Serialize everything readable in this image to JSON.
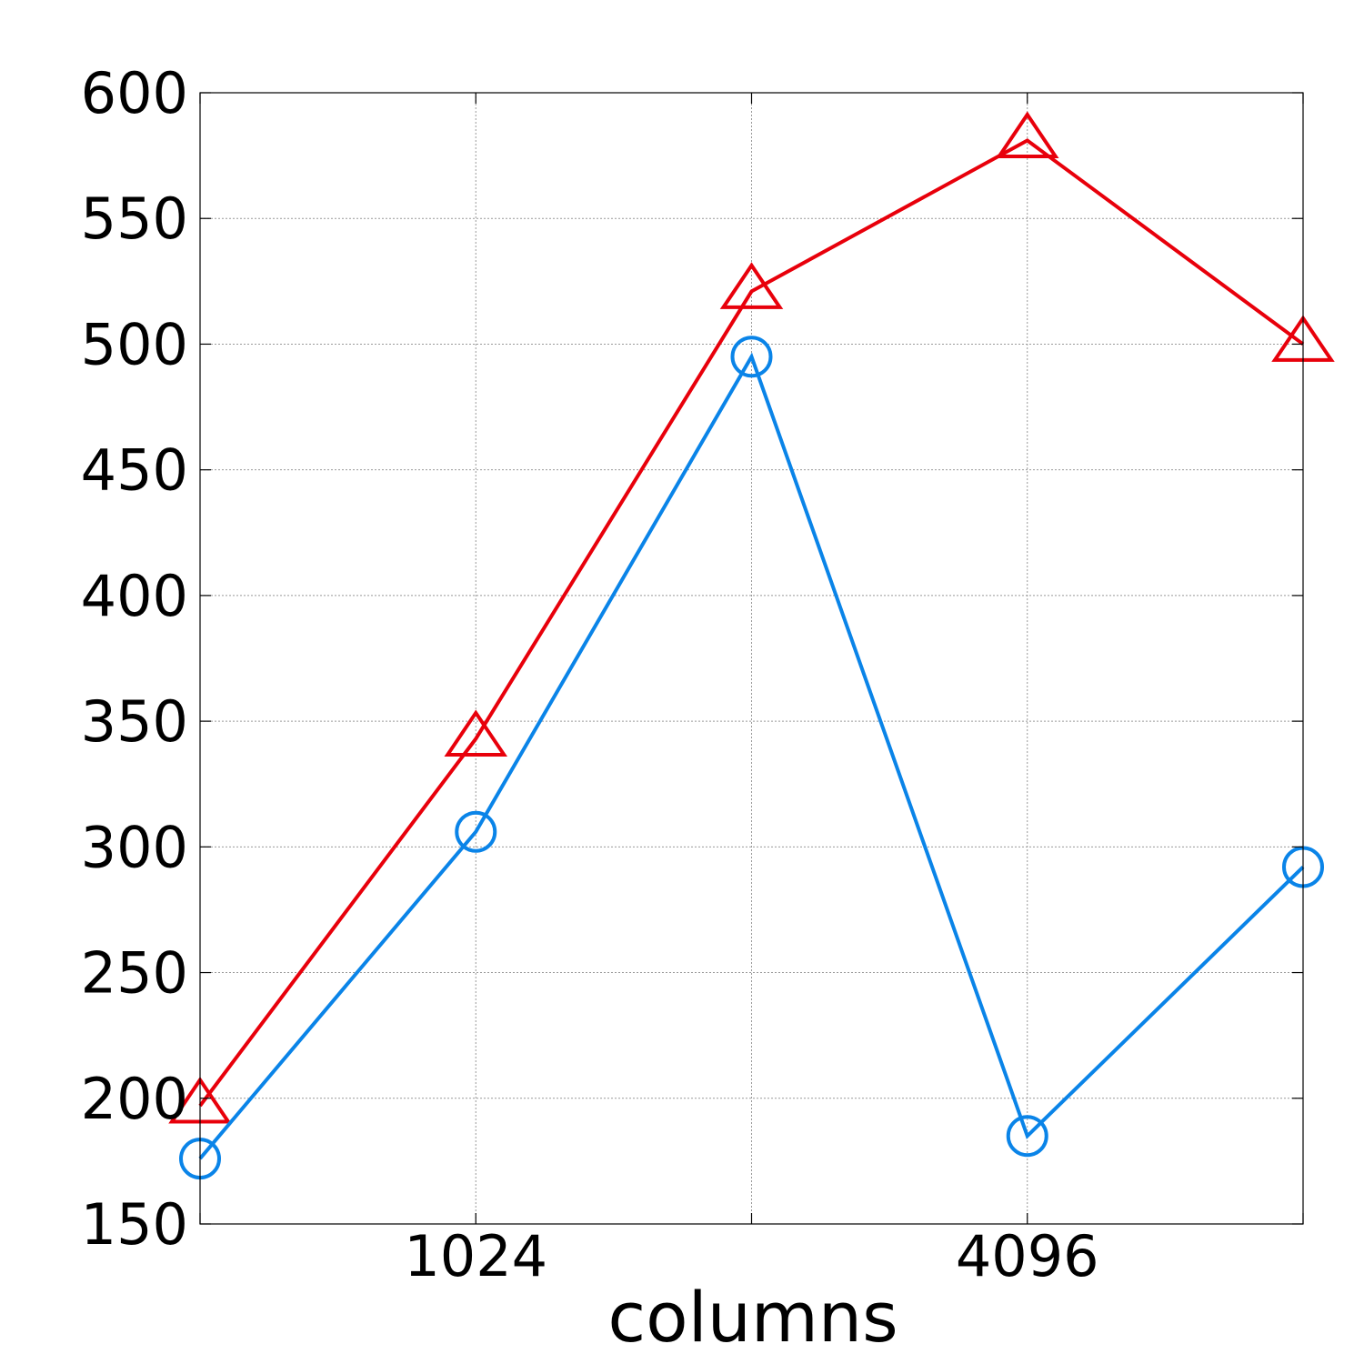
{
  "chart_data": {
    "type": "line",
    "x": [
      512,
      1024,
      2048,
      4096,
      8192
    ],
    "x_scale": "log2",
    "x_tick_values": [
      1024,
      4096
    ],
    "x_tick_labels": [
      "1024",
      "4096"
    ],
    "xlabel": "columns",
    "ylabel": "",
    "title": "",
    "ylim": [
      150,
      600
    ],
    "y_ticks": [
      150,
      200,
      250,
      300,
      350,
      400,
      450,
      500,
      550,
      600
    ],
    "grid": true,
    "legend": false,
    "series": [
      {
        "color": "#e8000b",
        "marker": "triangle",
        "values": [
          197,
          343,
          521,
          581,
          500
        ]
      },
      {
        "color": "#0a84e8",
        "marker": "circle",
        "values": [
          176,
          306,
          495,
          185,
          292
        ]
      }
    ]
  }
}
